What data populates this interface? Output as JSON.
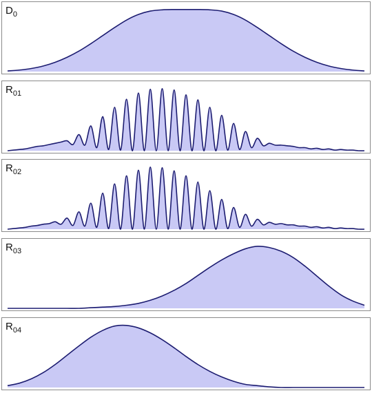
{
  "colors": {
    "fill": "#c9c9f5",
    "stroke": "#1c1c70",
    "frame": "#8a8a8a"
  },
  "chart_data": [
    {
      "type": "area",
      "label": {
        "main": "D",
        "sub": "0"
      },
      "ylim": [
        0,
        1.12
      ],
      "x": [
        -3.0,
        -2.8,
        -2.6,
        -2.4,
        -2.2,
        -2.0,
        -1.8,
        -1.6,
        -1.4,
        -1.2,
        -1.0,
        -0.8,
        -0.6,
        -0.4,
        -0.2,
        0.0,
        0.2,
        0.4,
        0.6,
        0.8,
        1.0,
        1.2,
        1.4,
        1.6,
        1.8,
        2.0,
        2.2,
        2.4,
        2.6,
        2.8,
        3.0
      ],
      "y": [
        0.01,
        0.025,
        0.05,
        0.09,
        0.15,
        0.23,
        0.33,
        0.45,
        0.58,
        0.71,
        0.83,
        0.92,
        0.975,
        0.995,
        1.0,
        1.0,
        1.0,
        0.995,
        0.975,
        0.92,
        0.83,
        0.71,
        0.58,
        0.45,
        0.33,
        0.23,
        0.15,
        0.09,
        0.05,
        0.025,
        0.01
      ]
    },
    {
      "type": "area",
      "label": {
        "main": "R",
        "sub": "01"
      },
      "ylim": [
        0,
        1.12
      ],
      "x": [
        -3.0,
        -2.9,
        -2.8,
        -2.7,
        -2.6,
        -2.5,
        -2.4,
        -2.3,
        -2.2,
        -2.1,
        -2.0,
        -1.9,
        -1.8,
        -1.7,
        -1.6,
        -1.5,
        -1.4,
        -1.3,
        -1.2,
        -1.1,
        -1.0,
        -0.9,
        -0.8,
        -0.7,
        -0.6,
        -0.5,
        -0.4,
        -0.3,
        -0.2,
        -0.1,
        0.0,
        0.1,
        0.2,
        0.3,
        0.4,
        0.5,
        0.6,
        0.7,
        0.8,
        0.9,
        1.0,
        1.1,
        1.2,
        1.3,
        1.4,
        1.5,
        1.6,
        1.7,
        1.8,
        1.9,
        2.0,
        2.1,
        2.2,
        2.3,
        2.4,
        2.5,
        2.6,
        2.7,
        2.8,
        2.9,
        3.0
      ],
      "y": [
        0.0,
        0.01,
        0.02,
        0.03,
        0.05,
        0.07,
        0.08,
        0.1,
        0.12,
        0.14,
        0.16,
        0.1,
        0.26,
        0.09,
        0.4,
        0.05,
        0.55,
        0.02,
        0.7,
        0.01,
        0.83,
        0.0,
        0.93,
        0.0,
        0.99,
        0.0,
        1.0,
        0.0,
        0.98,
        0.0,
        0.9,
        0.0,
        0.82,
        0.0,
        0.7,
        0.0,
        0.57,
        0.01,
        0.44,
        0.02,
        0.31,
        0.05,
        0.2,
        0.08,
        0.12,
        0.09,
        0.09,
        0.08,
        0.07,
        0.05,
        0.05,
        0.03,
        0.04,
        0.02,
        0.03,
        0.01,
        0.02,
        0.01,
        0.01,
        0.0,
        0.0
      ]
    },
    {
      "type": "area",
      "label": {
        "main": "R",
        "sub": "02"
      },
      "ylim": [
        0,
        1.12
      ],
      "x": [
        -3.0,
        -2.9,
        -2.8,
        -2.7,
        -2.6,
        -2.5,
        -2.4,
        -2.3,
        -2.2,
        -2.1,
        -2.0,
        -1.9,
        -1.8,
        -1.7,
        -1.6,
        -1.5,
        -1.4,
        -1.3,
        -1.2,
        -1.1,
        -1.0,
        -0.9,
        -0.8,
        -0.7,
        -0.6,
        -0.5,
        -0.4,
        -0.3,
        -0.2,
        -0.1,
        0.0,
        0.1,
        0.2,
        0.3,
        0.4,
        0.5,
        0.6,
        0.7,
        0.8,
        0.9,
        1.0,
        1.1,
        1.2,
        1.3,
        1.4,
        1.5,
        1.6,
        1.7,
        1.8,
        1.9,
        2.0,
        2.1,
        2.2,
        2.3,
        2.4,
        2.5,
        2.6,
        2.7,
        2.8,
        2.9,
        3.0
      ],
      "y": [
        0.0,
        0.01,
        0.02,
        0.03,
        0.05,
        0.06,
        0.08,
        0.09,
        0.12,
        0.08,
        0.18,
        0.06,
        0.28,
        0.05,
        0.42,
        0.03,
        0.58,
        0.01,
        0.73,
        0.0,
        0.86,
        0.0,
        0.95,
        0.0,
        1.0,
        0.0,
        0.99,
        0.0,
        0.94,
        0.0,
        0.86,
        0.0,
        0.76,
        0.0,
        0.62,
        0.0,
        0.48,
        0.01,
        0.35,
        0.03,
        0.24,
        0.05,
        0.16,
        0.07,
        0.11,
        0.08,
        0.09,
        0.07,
        0.07,
        0.05,
        0.05,
        0.03,
        0.04,
        0.02,
        0.03,
        0.01,
        0.02,
        0.01,
        0.01,
        0.0,
        0.0
      ]
    },
    {
      "type": "area",
      "label": {
        "main": "R",
        "sub": "03"
      },
      "ylim": [
        0,
        1.12
      ],
      "x": [
        -3.0,
        -2.8,
        -2.6,
        -2.4,
        -2.2,
        -2.0,
        -1.8,
        -1.6,
        -1.4,
        -1.2,
        -1.0,
        -0.8,
        -0.6,
        -0.4,
        -0.2,
        0.0,
        0.2,
        0.4,
        0.6,
        0.8,
        1.0,
        1.2,
        1.4,
        1.6,
        1.8,
        2.0,
        2.2,
        2.4,
        2.6,
        2.8,
        3.0
      ],
      "y": [
        0.0,
        0.0,
        0.0,
        0.0,
        0.0,
        0.0,
        0.0,
        0.01,
        0.02,
        0.03,
        0.05,
        0.08,
        0.13,
        0.2,
        0.29,
        0.4,
        0.53,
        0.66,
        0.78,
        0.88,
        0.96,
        1.0,
        0.98,
        0.92,
        0.82,
        0.68,
        0.52,
        0.36,
        0.22,
        0.12,
        0.05
      ]
    },
    {
      "type": "area",
      "label": {
        "main": "R",
        "sub": "04"
      },
      "ylim": [
        0,
        1.12
      ],
      "x": [
        -3.0,
        -2.8,
        -2.6,
        -2.4,
        -2.2,
        -2.0,
        -1.8,
        -1.6,
        -1.4,
        -1.2,
        -1.0,
        -0.8,
        -0.6,
        -0.4,
        -0.2,
        0.0,
        0.2,
        0.4,
        0.6,
        0.8,
        1.0,
        1.2,
        1.4,
        1.6,
        1.8,
        2.0,
        2.2,
        2.4,
        2.6,
        2.8,
        3.0
      ],
      "y": [
        0.03,
        0.07,
        0.14,
        0.24,
        0.37,
        0.52,
        0.67,
        0.81,
        0.92,
        0.99,
        1.0,
        0.96,
        0.88,
        0.77,
        0.64,
        0.5,
        0.37,
        0.26,
        0.17,
        0.1,
        0.05,
        0.03,
        0.01,
        0.0,
        0.0,
        0.0,
        0.0,
        0.0,
        0.0,
        0.0,
        0.0
      ]
    }
  ]
}
